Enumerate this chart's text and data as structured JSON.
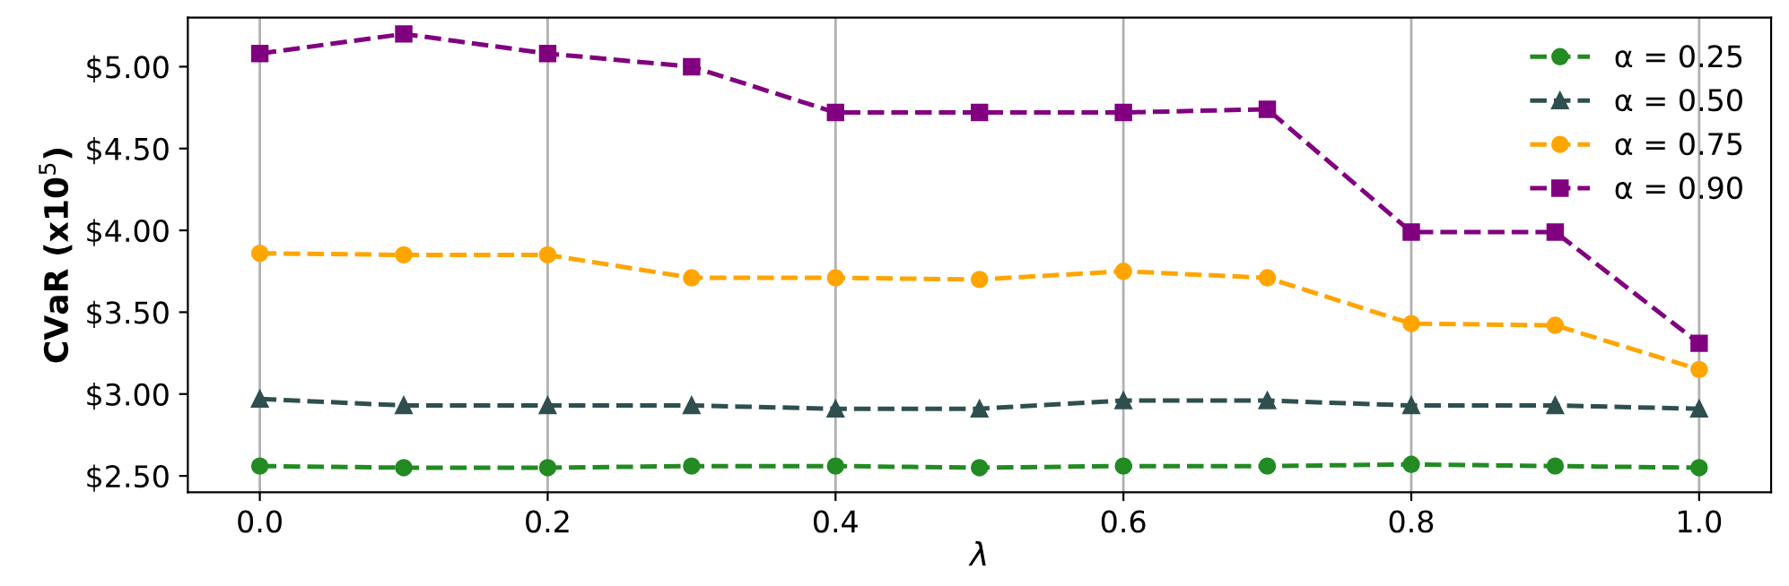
{
  "chart_data": {
    "type": "line",
    "xlabel": "λ",
    "ylabel": "CVaR (x10$^{5}$)",
    "x": [
      0.0,
      0.1,
      0.2,
      0.3,
      0.4,
      0.5,
      0.6,
      0.7,
      0.8,
      0.9,
      1.0
    ],
    "series": [
      {
        "name": "α = 0.25",
        "color": "#228b22",
        "marker": "circle",
        "values": [
          2.56,
          2.55,
          2.55,
          2.56,
          2.56,
          2.55,
          2.56,
          2.56,
          2.57,
          2.56,
          2.55
        ]
      },
      {
        "name": "α = 0.50",
        "color": "#2f4f4f",
        "marker": "triangle",
        "values": [
          2.97,
          2.93,
          2.93,
          2.93,
          2.91,
          2.91,
          2.96,
          2.96,
          2.93,
          2.93,
          2.91
        ]
      },
      {
        "name": "α = 0.75",
        "color": "#ffa500",
        "marker": "circle",
        "values": [
          3.86,
          3.85,
          3.85,
          3.71,
          3.71,
          3.7,
          3.75,
          3.71,
          3.43,
          3.42,
          3.15
        ]
      },
      {
        "name": "α = 0.90",
        "color": "#800080",
        "marker": "square",
        "values": [
          5.08,
          5.2,
          5.08,
          5.0,
          4.72,
          4.72,
          4.72,
          4.74,
          3.99,
          3.99,
          3.31
        ]
      }
    ],
    "line_style": "dashed",
    "grid": "x",
    "legend": "top right",
    "xlim": [
      -0.05,
      1.05
    ],
    "xticks": [
      {
        "value": 0,
        "label": "0.0"
      },
      0.2,
      0.4,
      0.6,
      0.8,
      {
        "value": 1,
        "label": "1.0"
      }
    ],
    "ylim": [
      2.4,
      5.3
    ],
    "yticks": [
      {
        "value": 2.5,
        "label": "$2.50"
      },
      {
        "value": 3.0,
        "label": "$3.00"
      },
      {
        "value": 3.5,
        "label": "$3.50"
      },
      {
        "value": 4.0,
        "label": "$4.00"
      },
      {
        "value": 4.5,
        "label": "$4.50"
      },
      {
        "value": 5.0,
        "label": "$5.00"
      }
    ]
  }
}
